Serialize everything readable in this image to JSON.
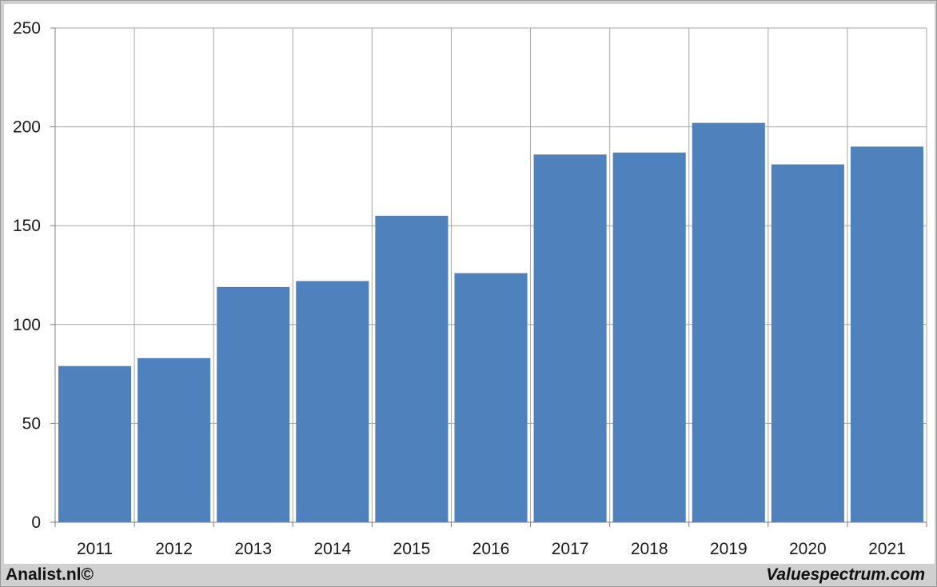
{
  "chart_data": {
    "type": "bar",
    "categories": [
      "2011",
      "2012",
      "2013",
      "2014",
      "2015",
      "2016",
      "2017",
      "2018",
      "2019",
      "2020",
      "2021"
    ],
    "values": [
      79,
      83,
      119,
      122,
      155,
      126,
      186,
      187,
      202,
      181,
      190
    ],
    "yticks": [
      0,
      50,
      100,
      150,
      200,
      250
    ],
    "ylim": [
      0,
      250
    ],
    "grid": true,
    "bar_color": "#4f81bd"
  },
  "footer": {
    "left": "Analist.nl©",
    "right": "Valuespectrum.com"
  }
}
